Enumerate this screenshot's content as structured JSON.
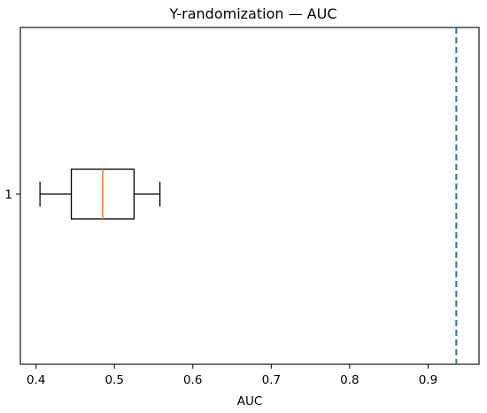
{
  "chart_data": {
    "type": "box",
    "title": "Y-randomization — AUC",
    "xlabel": "AUC",
    "ylabel": "",
    "orientation": "horizontal",
    "xlim": [
      0.38,
      0.965
    ],
    "x_ticks": [
      0.4,
      0.5,
      0.6,
      0.7,
      0.8,
      0.9
    ],
    "y_tick_labels": [
      "1"
    ],
    "boxes": [
      {
        "label": "1",
        "whisker_low": 0.405,
        "q1": 0.445,
        "median": 0.485,
        "q3": 0.525,
        "whisker_high": 0.558
      }
    ],
    "reference_line": {
      "x": 0.936,
      "style": "dashed",
      "color": "#1f77b4"
    },
    "median_color": "#ff7f0e",
    "grid": false
  }
}
